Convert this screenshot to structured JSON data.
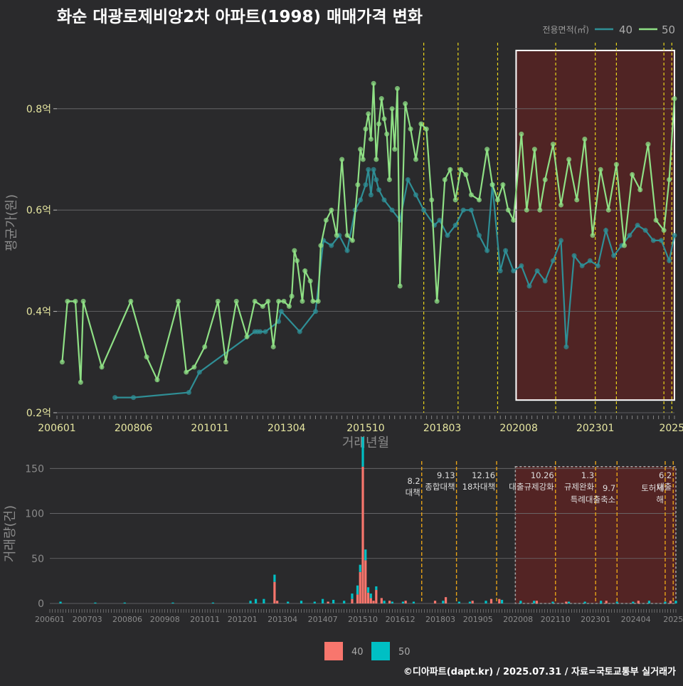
{
  "title": "화순 대광로제비앙2차 아파트(1998) 매매가격 변화",
  "credit": "©디아파트(dapt.kr) / 2025.07.31 / 자료=국토교통부 실거래가",
  "colors": {
    "background": "#2a2a2c",
    "series_40_line": "#2f8f96",
    "series_50_line": "#8fe085",
    "series_40_bar": "#f8766d",
    "series_50_bar": "#00bfc4",
    "policy_line_top": "#e6d21a",
    "policy_line_bottom": "#e8a317",
    "highlight": "#5a2323"
  },
  "chart_data": [
    {
      "type": "line",
      "xlabel": "거래년월",
      "ylabel": "평균가(원)",
      "legend_title": "전용면적(㎡)",
      "legend_position": "top-right",
      "ylim": [
        0.2,
        0.95
      ],
      "xlim": [
        "2006-01",
        "2025-07"
      ],
      "yticks": [
        0.2,
        0.4,
        0.6,
        0.8
      ],
      "ytick_labels": [
        "0.2억",
        "0.4억",
        "0.6억",
        "0.8억"
      ],
      "xtick_labels": [
        "200601",
        "200806",
        "201011",
        "201304",
        "201510",
        "201803",
        "202008",
        "202301",
        "2025"
      ],
      "xtick_dates": [
        "2006-01",
        "2008-06",
        "2010-11",
        "2013-04",
        "2015-10",
        "2018-03",
        "2020-08",
        "2023-01",
        "2025-06"
      ],
      "grid": true,
      "policy_dates": [
        "2017-08",
        "2018-09",
        "2019-12",
        "2021-10",
        "2023-01",
        "2023-09",
        "2025-03",
        "2025-06"
      ],
      "highlight_range": [
        "2020-07",
        "2025-07"
      ],
      "series": [
        {
          "name": "40",
          "points": [
            [
              "2007-11",
              0.23
            ],
            [
              "2008-06",
              0.23
            ],
            [
              "2010-03",
              0.24
            ],
            [
              "2010-07",
              0.28
            ],
            [
              "2012-04",
              0.36
            ],
            [
              "2012-05",
              0.36
            ],
            [
              "2012-06",
              0.36
            ],
            [
              "2012-08",
              0.36
            ],
            [
              "2013-01",
              0.38
            ],
            [
              "2013-02",
              0.4
            ],
            [
              "2013-09",
              0.36
            ],
            [
              "2014-03",
              0.4
            ],
            [
              "2014-06",
              0.54
            ],
            [
              "2014-09",
              0.53
            ],
            [
              "2014-12",
              0.55
            ],
            [
              "2015-03",
              0.52
            ],
            [
              "2015-06",
              0.6
            ],
            [
              "2015-08",
              0.62
            ],
            [
              "2015-10",
              0.65
            ],
            [
              "2015-11",
              0.68
            ],
            [
              "2015-12",
              0.63
            ],
            [
              "2016-01",
              0.68
            ],
            [
              "2016-02",
              0.66
            ],
            [
              "2016-03",
              0.64
            ],
            [
              "2016-05",
              0.62
            ],
            [
              "2016-08",
              0.6
            ],
            [
              "2016-11",
              0.58
            ],
            [
              "2017-02",
              0.66
            ],
            [
              "2017-05",
              0.63
            ],
            [
              "2017-08",
              0.6
            ],
            [
              "2017-12",
              0.57
            ],
            [
              "2018-02",
              0.58
            ],
            [
              "2018-05",
              0.55
            ],
            [
              "2018-08",
              0.57
            ],
            [
              "2018-11",
              0.6
            ],
            [
              "2019-02",
              0.6
            ],
            [
              "2019-05",
              0.55
            ],
            [
              "2019-08",
              0.52
            ],
            [
              "2019-10",
              0.65
            ],
            [
              "2020-01",
              0.48
            ],
            [
              "2020-03",
              0.52
            ],
            [
              "2020-06",
              0.48
            ],
            [
              "2020-09",
              0.49
            ],
            [
              "2020-12",
              0.45
            ],
            [
              "2021-03",
              0.48
            ],
            [
              "2021-06",
              0.46
            ],
            [
              "2021-09",
              0.5
            ],
            [
              "2021-12",
              0.54
            ],
            [
              "2022-02",
              0.33
            ],
            [
              "2022-05",
              0.51
            ],
            [
              "2022-08",
              0.49
            ],
            [
              "2022-11",
              0.5
            ],
            [
              "2023-02",
              0.49
            ],
            [
              "2023-05",
              0.56
            ],
            [
              "2023-08",
              0.51
            ],
            [
              "2023-11",
              0.53
            ],
            [
              "2024-02",
              0.55
            ],
            [
              "2024-05",
              0.57
            ],
            [
              "2024-08",
              0.56
            ],
            [
              "2024-11",
              0.54
            ],
            [
              "2025-02",
              0.54
            ],
            [
              "2025-05",
              0.5
            ],
            [
              "2025-07",
              0.55
            ]
          ]
        },
        {
          "name": "50",
          "points": [
            [
              "2006-03",
              0.3
            ],
            [
              "2006-05",
              0.42
            ],
            [
              "2006-08",
              0.42
            ],
            [
              "2006-10",
              0.26
            ],
            [
              "2006-11",
              0.42
            ],
            [
              "2007-06",
              0.29
            ],
            [
              "2008-05",
              0.42
            ],
            [
              "2008-11",
              0.31
            ],
            [
              "2009-03",
              0.265
            ],
            [
              "2009-11",
              0.42
            ],
            [
              "2010-02",
              0.28
            ],
            [
              "2010-05",
              0.29
            ],
            [
              "2010-09",
              0.33
            ],
            [
              "2011-02",
              0.42
            ],
            [
              "2011-05",
              0.3
            ],
            [
              "2011-09",
              0.42
            ],
            [
              "2012-01",
              0.35
            ],
            [
              "2012-04",
              0.42
            ],
            [
              "2012-07",
              0.41
            ],
            [
              "2012-09",
              0.42
            ],
            [
              "2012-11",
              0.33
            ],
            [
              "2013-01",
              0.42
            ],
            [
              "2013-03",
              0.42
            ],
            [
              "2013-05",
              0.41
            ],
            [
              "2013-06",
              0.43
            ],
            [
              "2013-07",
              0.52
            ],
            [
              "2013-08",
              0.5
            ],
            [
              "2013-10",
              0.42
            ],
            [
              "2013-11",
              0.48
            ],
            [
              "2014-01",
              0.46
            ],
            [
              "2014-02",
              0.42
            ],
            [
              "2014-04",
              0.42
            ],
            [
              "2014-05",
              0.53
            ],
            [
              "2014-07",
              0.58
            ],
            [
              "2014-09",
              0.6
            ],
            [
              "2014-11",
              0.55
            ],
            [
              "2015-01",
              0.7
            ],
            [
              "2015-03",
              0.55
            ],
            [
              "2015-05",
              0.54
            ],
            [
              "2015-07",
              0.65
            ],
            [
              "2015-08",
              0.72
            ],
            [
              "2015-09",
              0.7
            ],
            [
              "2015-10",
              0.76
            ],
            [
              "2015-11",
              0.79
            ],
            [
              "2015-12",
              0.74
            ],
            [
              "2016-01",
              0.85
            ],
            [
              "2016-02",
              0.7
            ],
            [
              "2016-03",
              0.77
            ],
            [
              "2016-04",
              0.82
            ],
            [
              "2016-05",
              0.78
            ],
            [
              "2016-06",
              0.75
            ],
            [
              "2016-07",
              0.66
            ],
            [
              "2016-08",
              0.8
            ],
            [
              "2016-09",
              0.72
            ],
            [
              "2016-10",
              0.84
            ],
            [
              "2016-11",
              0.45
            ],
            [
              "2017-01",
              0.81
            ],
            [
              "2017-03",
              0.76
            ],
            [
              "2017-05",
              0.7
            ],
            [
              "2017-07",
              0.77
            ],
            [
              "2017-09",
              0.76
            ],
            [
              "2017-11",
              0.62
            ],
            [
              "2018-01",
              0.42
            ],
            [
              "2018-04",
              0.66
            ],
            [
              "2018-06",
              0.68
            ],
            [
              "2018-08",
              0.62
            ],
            [
              "2018-10",
              0.68
            ],
            [
              "2018-12",
              0.67
            ],
            [
              "2019-02",
              0.63
            ],
            [
              "2019-05",
              0.62
            ],
            [
              "2019-08",
              0.72
            ],
            [
              "2019-10",
              0.65
            ],
            [
              "2019-12",
              0.62
            ],
            [
              "2020-02",
              0.65
            ],
            [
              "2020-04",
              0.6
            ],
            [
              "2020-06",
              0.58
            ],
            [
              "2020-09",
              0.75
            ],
            [
              "2020-11",
              0.6
            ],
            [
              "2021-02",
              0.72
            ],
            [
              "2021-04",
              0.6
            ],
            [
              "2021-06",
              0.66
            ],
            [
              "2021-09",
              0.73
            ],
            [
              "2021-12",
              0.61
            ],
            [
              "2022-03",
              0.7
            ],
            [
              "2022-06",
              0.62
            ],
            [
              "2022-09",
              0.74
            ],
            [
              "2022-12",
              0.55
            ],
            [
              "2023-03",
              0.68
            ],
            [
              "2023-06",
              0.6
            ],
            [
              "2023-09",
              0.69
            ],
            [
              "2023-12",
              0.53
            ],
            [
              "2024-03",
              0.67
            ],
            [
              "2024-06",
              0.64
            ],
            [
              "2024-09",
              0.73
            ],
            [
              "2024-12",
              0.58
            ],
            [
              "2025-03",
              0.56
            ],
            [
              "2025-05",
              0.66
            ],
            [
              "2025-07",
              0.82
            ]
          ]
        }
      ]
    },
    {
      "type": "bar",
      "stacked": true,
      "ylabel": "거래량(건)",
      "ylim": [
        0,
        155
      ],
      "yticks": [
        0,
        50,
        100,
        150
      ],
      "xtick_labels": [
        "200601",
        "200703",
        "200806",
        "200908",
        "201011",
        "201201",
        "201304",
        "201407",
        "201510",
        "201612",
        "201803",
        "201905",
        "202008",
        "202110",
        "202301",
        "202404",
        "2025"
      ],
      "xtick_dates": [
        "2006-01",
        "2007-03",
        "2008-06",
        "2009-08",
        "2010-11",
        "2012-01",
        "2013-04",
        "2014-07",
        "2015-10",
        "2016-12",
        "2018-03",
        "2019-05",
        "2020-08",
        "2021-10",
        "2023-01",
        "2024-04",
        "2025-06"
      ],
      "legend_position": "bottom",
      "policy_annotations": [
        {
          "date": "2017-08",
          "label": "8.2 대책"
        },
        {
          "date": "2018-09",
          "label": "9.13 종합대책"
        },
        {
          "date": "2019-12",
          "label": "12.16 18차대책"
        },
        {
          "date": "2021-10",
          "label": "10.26 대출규제강화"
        },
        {
          "date": "2023-01",
          "label": "1.3 규제완화"
        },
        {
          "date": "2023-09",
          "label": "9.7 특례대출축소"
        },
        {
          "date": "2025-03",
          "label": "토허제 해"
        },
        {
          "date": "2025-06",
          "label": "6.2 대출"
        }
      ],
      "series": [
        {
          "name": "40",
          "bars": [
            [
              "2013-01",
              24
            ],
            [
              "2013-02",
              3
            ],
            [
              "2014-09",
              2
            ],
            [
              "2015-06",
              5
            ],
            [
              "2015-08",
              10
            ],
            [
              "2015-09",
              35
            ],
            [
              "2015-10",
              152
            ],
            [
              "2015-11",
              48
            ],
            [
              "2015-12",
              12
            ],
            [
              "2016-01",
              6
            ],
            [
              "2016-02",
              3
            ],
            [
              "2016-03",
              15
            ],
            [
              "2016-05",
              6
            ],
            [
              "2016-08",
              3
            ],
            [
              "2017-02",
              3
            ],
            [
              "2018-01",
              3
            ],
            [
              "2018-05",
              7
            ],
            [
              "2019-03",
              3
            ],
            [
              "2019-10",
              5
            ],
            [
              "2020-01",
              5
            ],
            [
              "2021-03",
              3
            ],
            [
              "2022-02",
              2
            ],
            [
              "2023-05",
              3
            ],
            [
              "2024-05",
              3
            ],
            [
              "2025-05",
              3
            ]
          ]
        },
        {
          "name": "50",
          "bars": [
            [
              "2006-05",
              2
            ],
            [
              "2007-06",
              1
            ],
            [
              "2008-05",
              1
            ],
            [
              "2009-11",
              1
            ],
            [
              "2011-02",
              1
            ],
            [
              "2012-04",
              3
            ],
            [
              "2012-06",
              5
            ],
            [
              "2012-09",
              5
            ],
            [
              "2013-01",
              8
            ],
            [
              "2013-06",
              2
            ],
            [
              "2013-11",
              3
            ],
            [
              "2014-04",
              2
            ],
            [
              "2014-07",
              5
            ],
            [
              "2014-11",
              4
            ],
            [
              "2015-03",
              3
            ],
            [
              "2015-06",
              6
            ],
            [
              "2015-08",
              10
            ],
            [
              "2015-09",
              8
            ],
            [
              "2015-10",
              33
            ],
            [
              "2015-11",
              12
            ],
            [
              "2015-12",
              6
            ],
            [
              "2016-01",
              5
            ],
            [
              "2016-03",
              4
            ],
            [
              "2016-06",
              3
            ],
            [
              "2016-09",
              2
            ],
            [
              "2017-01",
              2
            ],
            [
              "2017-05",
              2
            ],
            [
              "2018-04",
              3
            ],
            [
              "2018-10",
              2
            ],
            [
              "2019-02",
              2
            ],
            [
              "2019-08",
              3
            ],
            [
              "2020-02",
              4
            ],
            [
              "2020-09",
              3
            ],
            [
              "2021-02",
              3
            ],
            [
              "2021-09",
              2
            ],
            [
              "2022-03",
              2
            ],
            [
              "2022-09",
              2
            ],
            [
              "2023-03",
              3
            ],
            [
              "2023-09",
              2
            ],
            [
              "2024-03",
              2
            ],
            [
              "2024-09",
              3
            ],
            [
              "2025-03",
              2
            ],
            [
              "2025-07",
              3
            ]
          ]
        }
      ]
    }
  ]
}
